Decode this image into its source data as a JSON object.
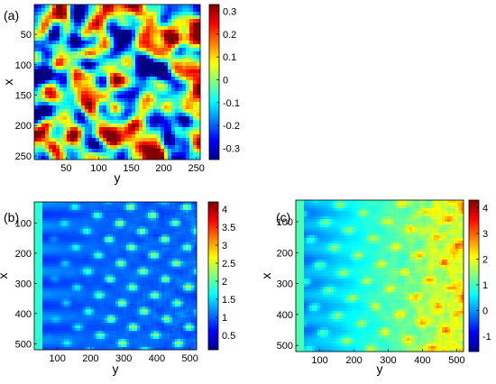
{
  "chart_data": [
    {
      "type": "heatmap",
      "panel_label": "(a)",
      "xlabel": "y",
      "ylabel": "x",
      "xlim": [
        1,
        256
      ],
      "ylim": [
        256,
        1
      ],
      "xticks": [
        "50",
        "100",
        "150",
        "200",
        "250"
      ],
      "yticks": [
        "50",
        "100",
        "150",
        "200",
        "250"
      ],
      "xtick_values": [
        50,
        100,
        150,
        200,
        250
      ],
      "ytick_values": [
        50,
        100,
        150,
        200,
        250
      ],
      "colorbar": {
        "range": [
          -0.35,
          0.33
        ],
        "ticks": [
          "0.3",
          "0.2",
          "0.1",
          "0",
          "-0.1",
          "-0.2",
          "-0.3"
        ],
        "tick_values": [
          0.3,
          0.2,
          0.1,
          0,
          -0.1,
          -0.2,
          -0.3
        ],
        "colormap": "jet"
      }
    },
    {
      "type": "heatmap",
      "panel_label": "(b)",
      "xlabel": "y",
      "ylabel": "x",
      "xlim": [
        30,
        520
      ],
      "ylim": [
        520,
        30
      ],
      "xticks": [
        "100",
        "200",
        "300",
        "400",
        "500"
      ],
      "yticks": [
        "100",
        "200",
        "300",
        "400",
        "500"
      ],
      "xtick_values": [
        100,
        200,
        300,
        400,
        500
      ],
      "ytick_values": [
        100,
        200,
        300,
        400,
        500
      ],
      "colorbar": {
        "range": [
          0.1,
          4.2
        ],
        "ticks": [
          "4",
          "3.5",
          "3",
          "2.5",
          "2",
          "1.5",
          "1",
          "0.5"
        ],
        "tick_values": [
          4,
          3.5,
          3,
          2.5,
          2,
          1.5,
          1,
          0.5
        ],
        "colormap": "jet"
      }
    },
    {
      "type": "heatmap",
      "panel_label": "(c)",
      "xlabel": "y",
      "ylabel": "x",
      "xlim": [
        30,
        520
      ],
      "ylim": [
        520,
        30
      ],
      "xticks": [
        "100",
        "200",
        "300",
        "400",
        "500"
      ],
      "yticks": [
        "100",
        "200",
        "300",
        "400",
        "500"
      ],
      "xtick_values": [
        100,
        200,
        300,
        400,
        500
      ],
      "ytick_values": [
        100,
        200,
        300,
        400,
        500
      ],
      "colorbar": {
        "range": [
          -1.6,
          4.3
        ],
        "ticks": [
          "4",
          "3",
          "2",
          "1",
          "0",
          "-1"
        ],
        "tick_values": [
          4,
          3,
          2,
          1,
          0,
          -1
        ],
        "colormap": "jet"
      }
    }
  ]
}
